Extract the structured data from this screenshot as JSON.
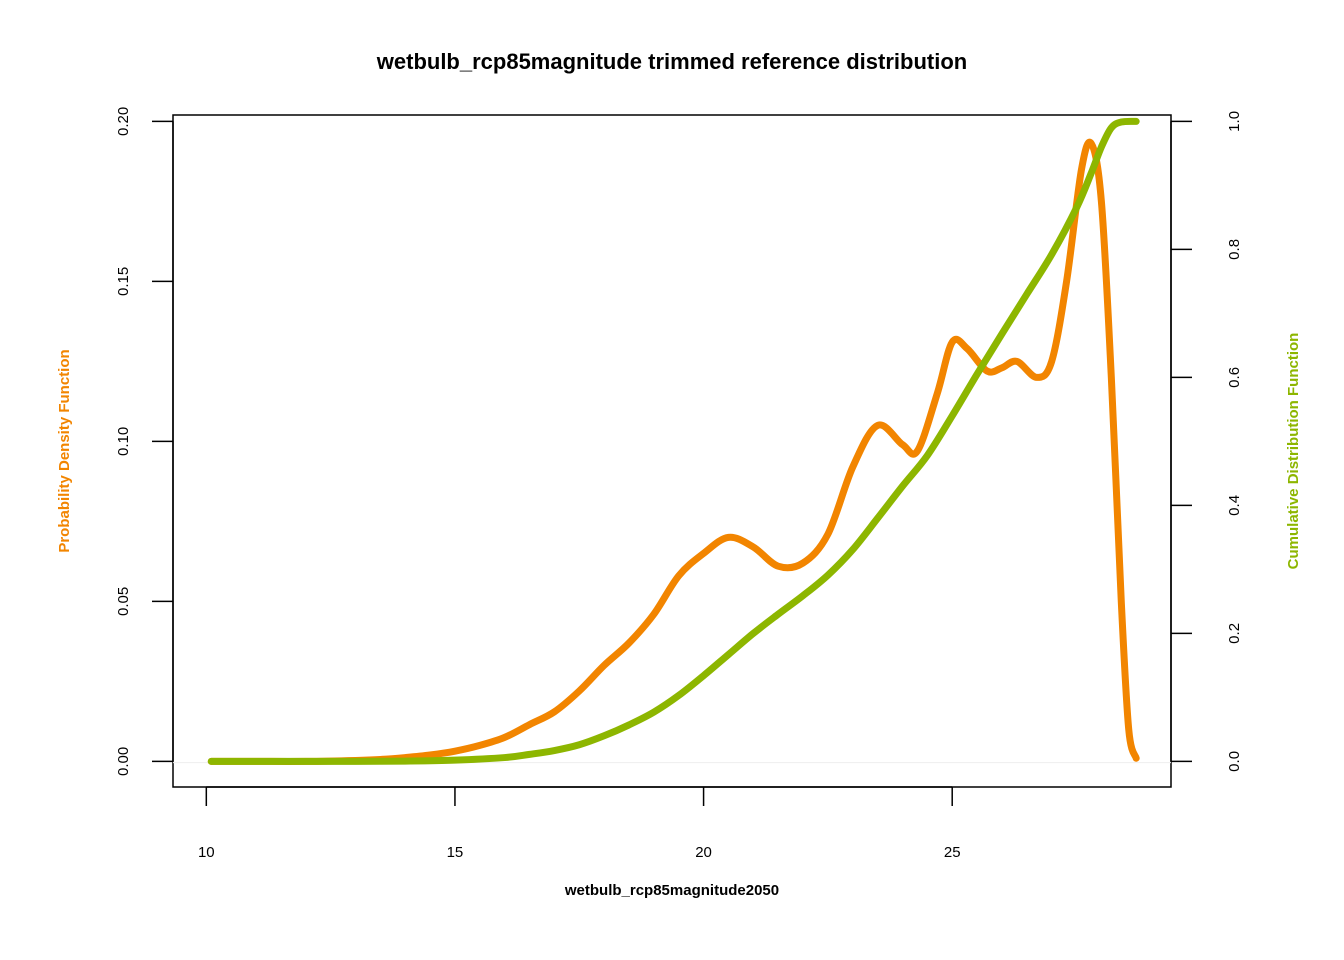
{
  "colors": {
    "pdf": "#F28500",
    "cdf": "#8DB600",
    "axis": "#000000",
    "background": "#FFFFFF"
  },
  "chart_data": {
    "type": "line",
    "title": "wetbulb_rcp85magnitude trimmed reference distribution",
    "xlabel": "wetbulb_rcp85magnitude2050",
    "ylabel_left": "Probability Density Function",
    "ylabel_right": "Cumulative Distribution Function",
    "xlim": [
      9.33,
      29.4
    ],
    "ylim_left": [
      -0.008,
      0.202
    ],
    "ylim_right": [
      -0.04,
      1.01
    ],
    "x_ticks": [
      10,
      15,
      20,
      25
    ],
    "x_tick_labels": [
      "10",
      "15",
      "20",
      "25"
    ],
    "y_left_ticks": [
      0.0,
      0.05,
      0.1,
      0.15,
      0.2
    ],
    "y_left_tick_labels": [
      "0.00",
      "0.05",
      "0.10",
      "0.15",
      "0.20"
    ],
    "y_right_ticks": [
      0.0,
      0.2,
      0.4,
      0.6,
      0.8,
      1.0
    ],
    "y_right_tick_labels": [
      "0.0",
      "0.2",
      "0.4",
      "0.6",
      "0.8",
      "1.0"
    ],
    "grid": false,
    "series": [
      {
        "name": "Probability Density Function",
        "axis": "left",
        "color": "#F28500",
        "points": [
          [
            10.1,
            0.0
          ],
          [
            11.0,
            0.0
          ],
          [
            12.0,
            0.0
          ],
          [
            13.0,
            0.0003
          ],
          [
            13.5,
            0.0006
          ],
          [
            14.0,
            0.0012
          ],
          [
            14.5,
            0.002
          ],
          [
            15.0,
            0.0032
          ],
          [
            15.5,
            0.005
          ],
          [
            16.0,
            0.0075
          ],
          [
            16.5,
            0.0115
          ],
          [
            17.0,
            0.0155
          ],
          [
            17.5,
            0.022
          ],
          [
            18.0,
            0.03
          ],
          [
            18.5,
            0.037
          ],
          [
            19.0,
            0.046
          ],
          [
            19.5,
            0.058
          ],
          [
            20.0,
            0.065
          ],
          [
            20.5,
            0.07
          ],
          [
            21.0,
            0.067
          ],
          [
            21.5,
            0.061
          ],
          [
            22.0,
            0.062
          ],
          [
            22.5,
            0.071
          ],
          [
            23.0,
            0.092
          ],
          [
            23.5,
            0.105
          ],
          [
            24.0,
            0.099
          ],
          [
            24.3,
            0.097
          ],
          [
            24.7,
            0.115
          ],
          [
            25.0,
            0.131
          ],
          [
            25.3,
            0.129
          ],
          [
            25.7,
            0.122
          ],
          [
            26.0,
            0.123
          ],
          [
            26.3,
            0.125
          ],
          [
            26.7,
            0.12
          ],
          [
            27.0,
            0.125
          ],
          [
            27.3,
            0.15
          ],
          [
            27.6,
            0.185
          ],
          [
            27.8,
            0.193
          ],
          [
            28.0,
            0.175
          ],
          [
            28.2,
            0.12
          ],
          [
            28.4,
            0.05
          ],
          [
            28.55,
            0.01
          ],
          [
            28.7,
            0.001
          ]
        ]
      },
      {
        "name": "Cumulative Distribution Function",
        "axis": "right",
        "color": "#8DB600",
        "points": [
          [
            10.1,
            0.0
          ],
          [
            12.0,
            0.0
          ],
          [
            13.0,
            0.0
          ],
          [
            14.0,
            0.0005
          ],
          [
            15.0,
            0.002
          ],
          [
            16.0,
            0.006
          ],
          [
            16.5,
            0.011
          ],
          [
            17.0,
            0.017
          ],
          [
            17.5,
            0.026
          ],
          [
            18.0,
            0.04
          ],
          [
            18.5,
            0.057
          ],
          [
            19.0,
            0.077
          ],
          [
            19.5,
            0.103
          ],
          [
            20.0,
            0.134
          ],
          [
            20.5,
            0.167
          ],
          [
            21.0,
            0.2
          ],
          [
            21.5,
            0.23
          ],
          [
            22.0,
            0.259
          ],
          [
            22.5,
            0.291
          ],
          [
            23.0,
            0.331
          ],
          [
            23.5,
            0.38
          ],
          [
            24.0,
            0.43
          ],
          [
            24.5,
            0.478
          ],
          [
            25.0,
            0.54
          ],
          [
            25.5,
            0.605
          ],
          [
            26.0,
            0.668
          ],
          [
            26.5,
            0.73
          ],
          [
            27.0,
            0.792
          ],
          [
            27.5,
            0.865
          ],
          [
            27.8,
            0.92
          ],
          [
            28.0,
            0.96
          ],
          [
            28.2,
            0.99
          ],
          [
            28.4,
            0.999
          ],
          [
            28.7,
            1.0
          ]
        ]
      }
    ]
  }
}
